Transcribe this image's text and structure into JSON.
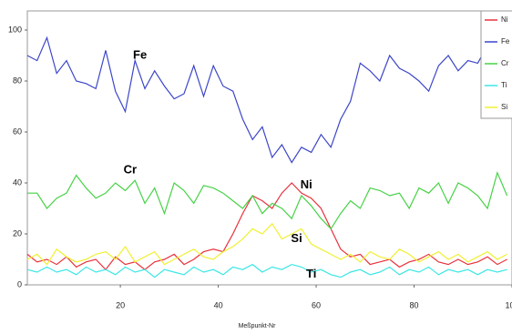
{
  "chart_data": {
    "type": "line",
    "x_label": "Meßpunkt-Nr",
    "x": [
      1,
      3,
      5,
      7,
      9,
      11,
      13,
      15,
      17,
      19,
      21,
      23,
      25,
      27,
      29,
      31,
      33,
      35,
      37,
      39,
      41,
      43,
      45,
      47,
      49,
      51,
      53,
      55,
      57,
      59,
      61,
      63,
      65,
      67,
      69,
      71,
      73,
      75,
      77,
      79,
      81,
      83,
      85,
      87,
      89,
      91,
      93,
      95,
      97,
      99
    ],
    "series": [
      {
        "name": "Ni",
        "color": "#e8323c",
        "values": [
          12,
          9,
          10,
          8,
          11,
          7,
          9,
          10,
          6,
          11,
          8,
          9,
          6,
          9,
          10,
          12,
          8,
          10,
          13,
          14,
          13,
          20,
          28,
          35,
          33,
          30,
          36,
          40,
          36,
          34,
          30,
          22,
          14,
          11,
          12,
          8,
          9,
          10,
          7,
          9,
          10,
          12,
          9,
          8,
          10,
          8,
          9,
          11,
          8,
          10
        ]
      },
      {
        "name": "Fe",
        "color": "#3c46c8",
        "values": [
          90,
          88,
          97,
          83,
          88,
          80,
          79,
          77,
          92,
          76,
          68,
          88,
          77,
          84,
          78,
          73,
          75,
          86,
          74,
          86,
          78,
          76,
          65,
          57,
          62,
          50,
          55,
          48,
          54,
          52,
          59,
          54,
          65,
          72,
          87,
          84,
          80,
          90,
          85,
          83,
          80,
          76,
          86,
          90,
          84,
          88,
          87,
          94,
          84,
          72
        ]
      },
      {
        "name": "Cr",
        "color": "#46d246",
        "values": [
          36,
          36,
          30,
          34,
          36,
          43,
          38,
          34,
          36,
          40,
          37,
          41,
          32,
          38,
          28,
          40,
          37,
          32,
          39,
          38,
          36,
          33,
          30,
          35,
          28,
          32,
          30,
          26,
          35,
          31,
          26,
          22,
          28,
          33,
          30,
          38,
          37,
          35,
          36,
          30,
          38,
          36,
          40,
          32,
          40,
          38,
          35,
          30,
          44,
          35
        ]
      },
      {
        "name": "Ti",
        "color": "#3ce6e6",
        "values": [
          6,
          5,
          7,
          5,
          6,
          4,
          7,
          5,
          6,
          4,
          7,
          5,
          6,
          3,
          6,
          5,
          4,
          7,
          5,
          6,
          4,
          7,
          6,
          8,
          5,
          7,
          6,
          8,
          7,
          5,
          6,
          4,
          3,
          5,
          6,
          4,
          5,
          7,
          4,
          6,
          5,
          7,
          4,
          6,
          5,
          6,
          4,
          6,
          5,
          6
        ]
      },
      {
        "name": "Si",
        "color": "#f0f032",
        "values": [
          10,
          12,
          8,
          14,
          11,
          9,
          10,
          12,
          13,
          10,
          15,
          9,
          11,
          13,
          8,
          10,
          12,
          14,
          11,
          10,
          13,
          15,
          18,
          22,
          20,
          24,
          18,
          20,
          22,
          16,
          14,
          12,
          10,
          12,
          9,
          13,
          11,
          10,
          14,
          12,
          9,
          11,
          13,
          10,
          12,
          9,
          11,
          13,
          10,
          12
        ]
      }
    ],
    "annotations": [
      {
        "text": "Fe",
        "x": 24,
        "y": 90
      },
      {
        "text": "Cr",
        "x": 22,
        "y": 45
      },
      {
        "text": "Ni",
        "x": 58,
        "y": 39
      },
      {
        "text": "Si",
        "x": 56,
        "y": 18
      },
      {
        "text": "Ti",
        "x": 59,
        "y": 4
      }
    ],
    "xlim": [
      1,
      100
    ],
    "xticks": [
      20,
      40,
      60,
      80,
      100
    ],
    "ylim": [
      0,
      107.5
    ],
    "yticks": [
      0,
      20,
      40,
      60,
      80,
      100
    ],
    "grid": false,
    "legend": "upper right"
  }
}
